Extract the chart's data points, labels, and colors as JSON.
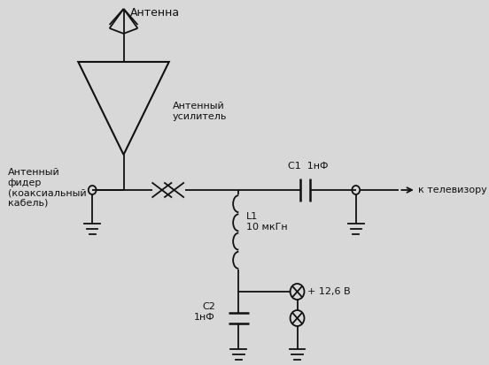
{
  "bg_color": "#d8d8d8",
  "line_color": "#111111",
  "text_color": "#111111",
  "font_size": 8,
  "labels": {
    "antenna": "Антенна",
    "amplifier": "Антенный\nусилитель",
    "feeder": "Антенный\nфидер\n(коаксиальный\nкабель)",
    "C1": "С1  1нФ",
    "L1": "L1\n10 мкГн",
    "C2": "С2\n1нФ",
    "voltage": "+ 12,6 В",
    "to_tv": "к телевизору"
  }
}
